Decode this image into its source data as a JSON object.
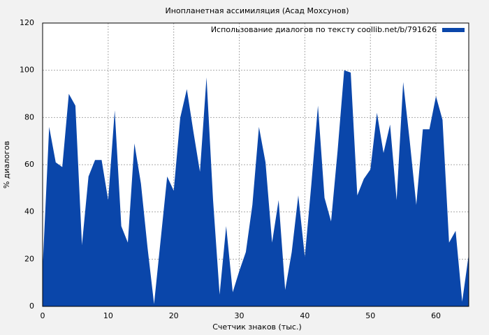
{
  "chart_data": {
    "type": "area",
    "title": "Инопланетная ассимиляция (Асад Мохсунов)",
    "x_label": "Счетчик знаков (тыс.)",
    "y_label": "% диалогов",
    "x": [
      0,
      1,
      2,
      3,
      4,
      5,
      6,
      7,
      8,
      9,
      10,
      11,
      12,
      13,
      14,
      15,
      16,
      17,
      18,
      19,
      20,
      21,
      22,
      23,
      24,
      25,
      26,
      27,
      28,
      29,
      30,
      31,
      32,
      33,
      34,
      35,
      36,
      37,
      38,
      39,
      40,
      41,
      42,
      43,
      44,
      45,
      46,
      47,
      48,
      49,
      50,
      51,
      52,
      53,
      54,
      55,
      56,
      57,
      58,
      59,
      60,
      61,
      62,
      63,
      64,
      65
    ],
    "series": [
      {
        "name": "Использование диалогов по тексту coollib.net/b/791626",
        "color": "#0a46aa",
        "values": [
          16,
          76,
          61,
          59,
          90,
          85,
          26,
          55,
          62,
          62,
          45,
          83,
          34,
          27,
          69,
          52,
          25,
          1,
          28,
          55,
          49,
          80,
          92,
          74,
          57,
          97,
          45,
          5,
          34,
          6,
          15,
          23,
          43,
          76,
          61,
          27,
          45,
          7,
          23,
          47,
          21,
          52,
          85,
          46,
          36,
          66,
          100,
          99,
          47,
          54,
          58,
          82,
          65,
          77,
          45,
          95,
          70,
          43,
          75,
          75,
          89,
          79,
          27,
          32,
          2,
          22
        ]
      }
    ],
    "xlim": [
      0,
      65
    ],
    "ylim": [
      0,
      120
    ],
    "xticks": [
      0,
      10,
      20,
      30,
      40,
      50,
      60
    ],
    "yticks": [
      0,
      20,
      40,
      60,
      80,
      100,
      120
    ],
    "grid": true,
    "legend": "top-right"
  }
}
